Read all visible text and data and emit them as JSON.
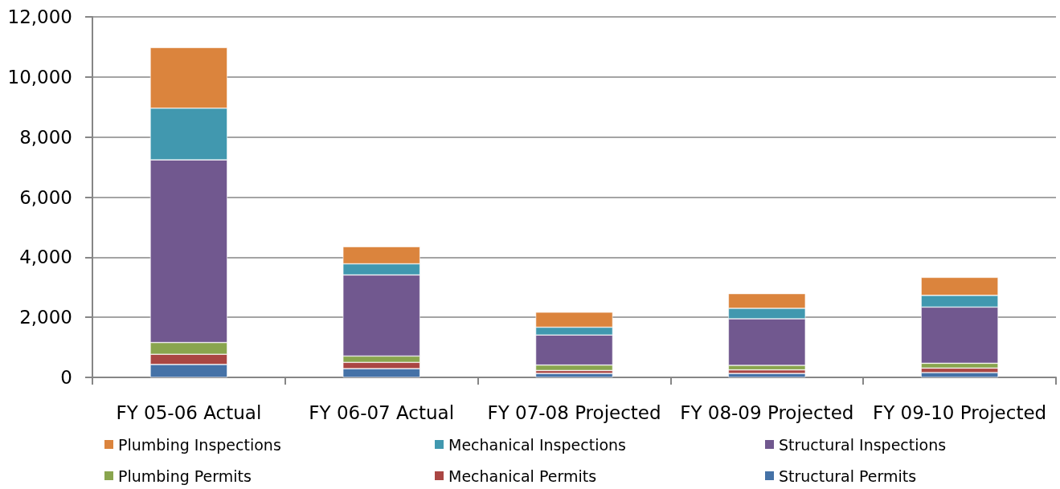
{
  "chart_data": {
    "type": "bar",
    "stacked": true,
    "categories": [
      "FY 05-06 Actual",
      "FY 06-07 Actual",
      "FY 07-08 Projected",
      "FY 08-09 Projected",
      "FY 09-10 Projected"
    ],
    "series": [
      {
        "name": "Structural Permits",
        "color": "#4572a7",
        "values": [
          430,
          290,
          130,
          130,
          160
        ]
      },
      {
        "name": "Mechanical Permits",
        "color": "#aa4643",
        "values": [
          340,
          210,
          100,
          120,
          150
        ]
      },
      {
        "name": "Plumbing Permits",
        "color": "#89a54e",
        "values": [
          390,
          210,
          180,
          150,
          160
        ]
      },
      {
        "name": "Structural Inspections",
        "color": "#71588f",
        "values": [
          6080,
          2700,
          1000,
          1550,
          1870
        ]
      },
      {
        "name": "Mechanical Inspections",
        "color": "#4198af",
        "values": [
          1720,
          370,
          260,
          350,
          390
        ]
      },
      {
        "name": "Plumbing Inspections",
        "color": "#db843d",
        "values": [
          2020,
          570,
          500,
          490,
          600
        ]
      }
    ],
    "ylim": [
      0,
      12000
    ],
    "yticks": [
      0,
      {
        "value": 2000,
        "label": "2,000"
      },
      {
        "value": 4000,
        "label": "4,000"
      },
      {
        "value": 6000,
        "label": "6,000"
      },
      {
        "value": 8000,
        "label": "8,000"
      },
      {
        "value": 10000,
        "label": "10,000"
      },
      {
        "value": 12000,
        "label": "12,000"
      }
    ],
    "grid": "y",
    "legend": "bottom"
  }
}
